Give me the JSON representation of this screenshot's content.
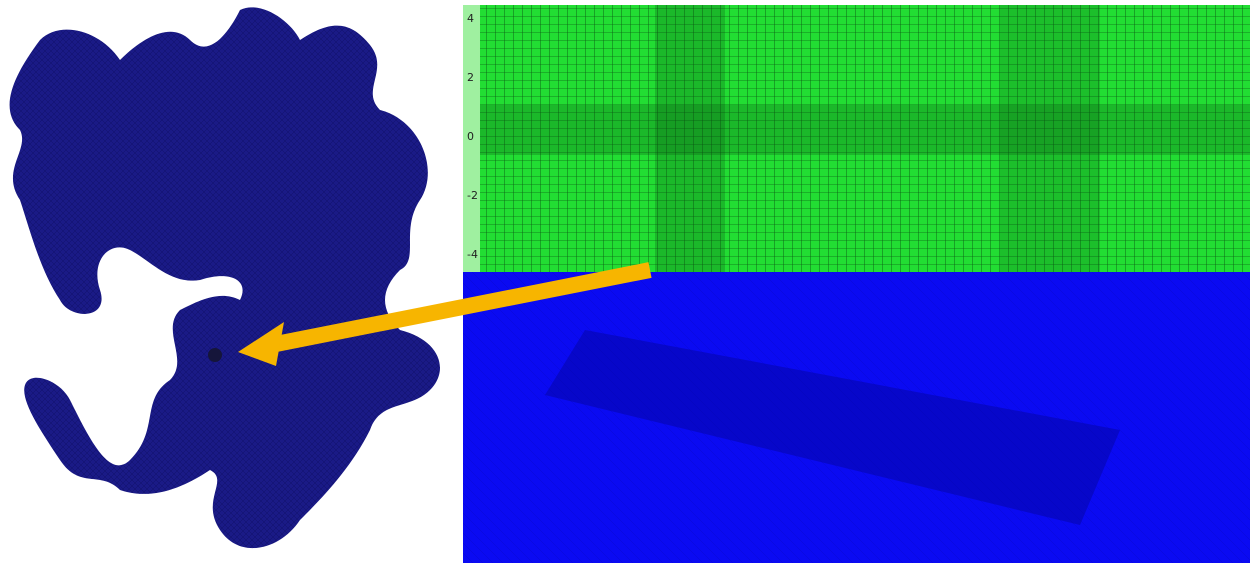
{
  "axis": {
    "ticks": [
      4,
      2,
      0,
      -2,
      -4
    ]
  }
}
